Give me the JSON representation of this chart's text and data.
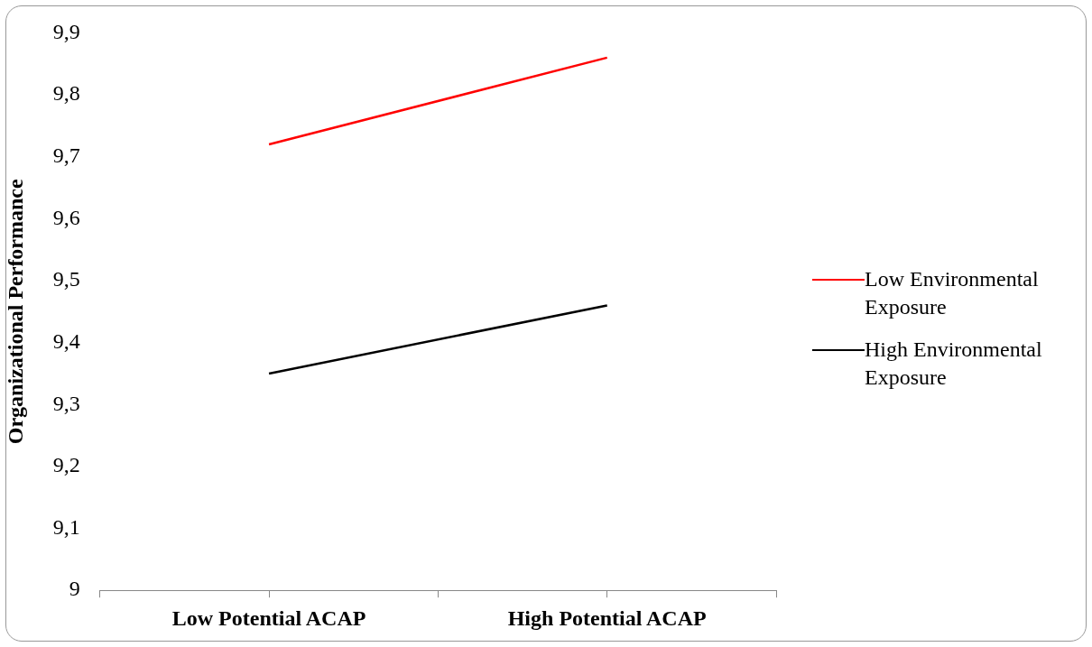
{
  "chart_data": {
    "type": "line",
    "ylabel": "Organizational Performance",
    "categories": [
      null,
      "Low Potential ACAP",
      null,
      "High Potential ACAP",
      null
    ],
    "series": [
      {
        "name": "Low Environmental Exposure",
        "color": "#ff0000",
        "values": [
          null,
          9.72,
          null,
          9.86,
          null
        ]
      },
      {
        "name": "High Environmental Exposure",
        "color": "#000000",
        "values": [
          null,
          9.35,
          null,
          9.46,
          null
        ]
      }
    ],
    "ylim": [
      9,
      9.9
    ],
    "yticks": [
      {
        "value": 9,
        "label": "9"
      },
      {
        "value": 9.1,
        "label": "9,1"
      },
      {
        "value": 9.2,
        "label": "9,2"
      },
      {
        "value": 9.3,
        "label": "9,3"
      },
      {
        "value": 9.4,
        "label": "9,4"
      },
      {
        "value": 9.5,
        "label": "9,5"
      },
      {
        "value": 9.6,
        "label": "9,6"
      },
      {
        "value": 9.7,
        "label": "9,7"
      },
      {
        "value": 9.8,
        "label": "9,8"
      },
      {
        "value": 9.9,
        "label": "9,9"
      }
    ],
    "grid": false,
    "legend": "right",
    "marker": "none",
    "line_style": "solid"
  }
}
